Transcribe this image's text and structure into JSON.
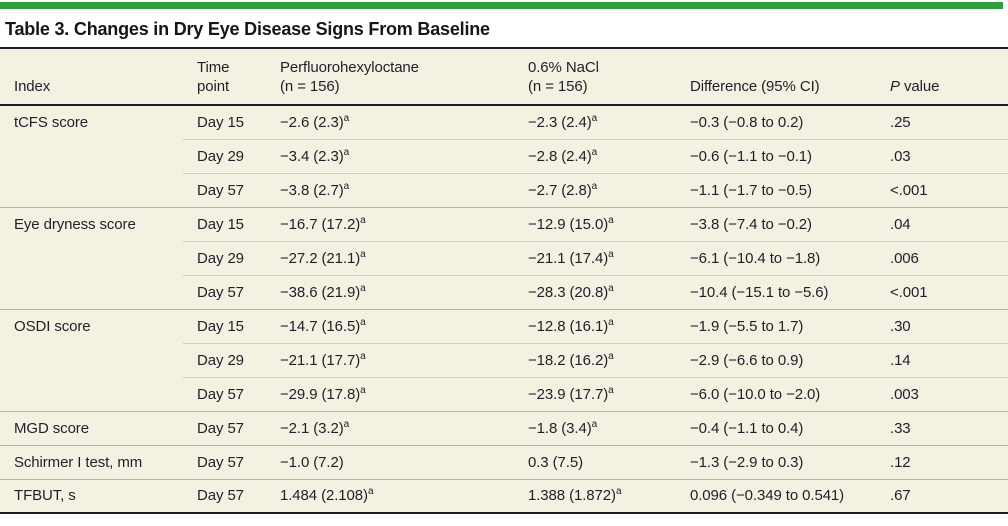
{
  "colors": {
    "accent_green": "#2f9e3a",
    "row_cream": "#f4f1e3",
    "rule_dark": "#1d1d22",
    "rule_group_separator": "#b4b1a5",
    "rule_light_separator": "#d2cfc2",
    "text": "#1f1f27"
  },
  "title": "Table 3. Changes in Dry Eye Disease Signs From Baseline",
  "table": {
    "columns": [
      {
        "line1": "Index"
      },
      {
        "line1": "Time",
        "line2": "point"
      },
      {
        "line1": "Perfluorohexyloctane",
        "line2": "(n = 156)"
      },
      {
        "line1": "0.6% NaCl",
        "line2": "(n = 156)"
      },
      {
        "line1": "Difference (95% CI)"
      },
      {
        "italic": "P",
        "line1": " value"
      }
    ],
    "footnote_marker": "a",
    "groups": [
      {
        "index": "tCFS score",
        "rows": [
          {
            "time": "Day 15",
            "pfho": {
              "text": "−2.6 (2.3)",
              "sup": "a"
            },
            "nacl": {
              "text": "−2.3 (2.4)",
              "sup": "a"
            },
            "diff": "−0.3 (−0.8 to 0.2)",
            "p": ".25"
          },
          {
            "time": "Day 29",
            "pfho": {
              "text": "−3.4 (2.3)",
              "sup": "a"
            },
            "nacl": {
              "text": "−2.8 (2.4)",
              "sup": "a"
            },
            "diff": "−0.6 (−1.1 to −0.1)",
            "p": ".03"
          },
          {
            "time": "Day 57",
            "pfho": {
              "text": "−3.8 (2.7)",
              "sup": "a"
            },
            "nacl": {
              "text": "−2.7 (2.8)",
              "sup": "a"
            },
            "diff": "−1.1 (−1.7 to −0.5)",
            "p": "<.001"
          }
        ]
      },
      {
        "index": "Eye dryness score",
        "rows": [
          {
            "time": "Day 15",
            "pfho": {
              "text": "−16.7 (17.2)",
              "sup": "a"
            },
            "nacl": {
              "text": "−12.9 (15.0)",
              "sup": "a"
            },
            "diff": "−3.8 (−7.4 to −0.2)",
            "p": ".04"
          },
          {
            "time": "Day 29",
            "pfho": {
              "text": "−27.2 (21.1)",
              "sup": "a"
            },
            "nacl": {
              "text": "−21.1 (17.4)",
              "sup": "a"
            },
            "diff": "−6.1 (−10.4 to −1.8)",
            "p": ".006"
          },
          {
            "time": "Day 57",
            "pfho": {
              "text": "−38.6 (21.9)",
              "sup": "a"
            },
            "nacl": {
              "text": "−28.3 (20.8)",
              "sup": "a"
            },
            "diff": "−10.4 (−15.1 to −5.6)",
            "p": "<.001"
          }
        ]
      },
      {
        "index": "OSDI score",
        "rows": [
          {
            "time": "Day 15",
            "pfho": {
              "text": "−14.7 (16.5)",
              "sup": "a"
            },
            "nacl": {
              "text": "−12.8 (16.1)",
              "sup": "a"
            },
            "diff": "−1.9 (−5.5 to 1.7)",
            "p": ".30"
          },
          {
            "time": "Day 29",
            "pfho": {
              "text": "−21.1 (17.7)",
              "sup": "a"
            },
            "nacl": {
              "text": "−18.2 (16.2)",
              "sup": "a"
            },
            "diff": "−2.9 (−6.6 to 0.9)",
            "p": ".14"
          },
          {
            "time": "Day 57",
            "pfho": {
              "text": "−29.9 (17.8)",
              "sup": "a"
            },
            "nacl": {
              "text": "−23.9 (17.7)",
              "sup": "a"
            },
            "diff": "−6.0 (−10.0 to −2.0)",
            "p": ".003"
          }
        ]
      },
      {
        "index": "MGD score",
        "rows": [
          {
            "time": "Day 57",
            "pfho": {
              "text": "−2.1 (3.2)",
              "sup": "a"
            },
            "nacl": {
              "text": "−1.8 (3.4)",
              "sup": "a"
            },
            "diff": "−0.4 (−1.1 to 0.4)",
            "p": ".33"
          }
        ]
      },
      {
        "index": "Schirmer I test, mm",
        "rows": [
          {
            "time": "Day 57",
            "pfho": {
              "text": "−1.0 (7.2)",
              "sup": ""
            },
            "nacl": {
              "text": "0.3 (7.5)",
              "sup": ""
            },
            "diff": "−1.3 (−2.9 to 0.3)",
            "p": ".12"
          }
        ]
      },
      {
        "index": "TFBUT, s",
        "rows": [
          {
            "time": "Day 57",
            "pfho": {
              "text": "1.484 (2.108)",
              "sup": "a"
            },
            "nacl": {
              "text": "1.388 (1.872)",
              "sup": "a"
            },
            "diff": "0.096 (−0.349 to 0.541)",
            "p": ".67"
          }
        ]
      }
    ]
  }
}
